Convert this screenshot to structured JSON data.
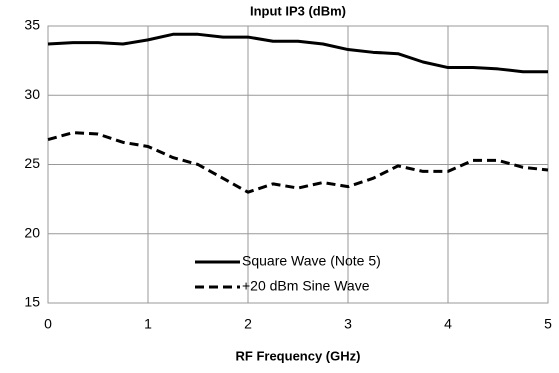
{
  "chart_data": {
    "type": "line",
    "title": "Input IP3 (dBm)",
    "x_label": "RF Frequency (GHz)",
    "x": [
      0,
      0.25,
      0.5,
      0.75,
      1,
      1.25,
      1.5,
      1.75,
      2,
      2.25,
      2.5,
      2.75,
      3,
      3.25,
      3.5,
      3.75,
      4,
      4.25,
      4.5,
      4.75,
      5
    ],
    "series": [
      {
        "name": "Square Wave (Note 5)",
        "color": "#000000",
        "dash": false,
        "values": [
          33.7,
          33.8,
          33.8,
          33.7,
          34.0,
          34.4,
          34.4,
          34.2,
          34.2,
          33.9,
          33.9,
          33.7,
          33.3,
          33.1,
          33.0,
          32.4,
          32.0,
          32.0,
          31.9,
          31.7,
          31.7
        ]
      },
      {
        "name": "+20 dBm Sine Wave",
        "color": "#000000",
        "dash": true,
        "values": [
          26.8,
          27.3,
          27.2,
          26.6,
          26.3,
          25.5,
          25.0,
          24.0,
          23.0,
          23.6,
          23.3,
          23.7,
          23.4,
          24.0,
          24.9,
          24.5,
          24.5,
          25.3,
          25.3,
          24.8,
          24.6
        ]
      }
    ],
    "xlim": [
      0,
      5
    ],
    "xticks": [
      0,
      1,
      2,
      3,
      4,
      5
    ],
    "ylim": [
      15,
      35
    ],
    "yticks": [
      15,
      20,
      25,
      30,
      35
    ],
    "grid": true,
    "legend": "lower center"
  }
}
